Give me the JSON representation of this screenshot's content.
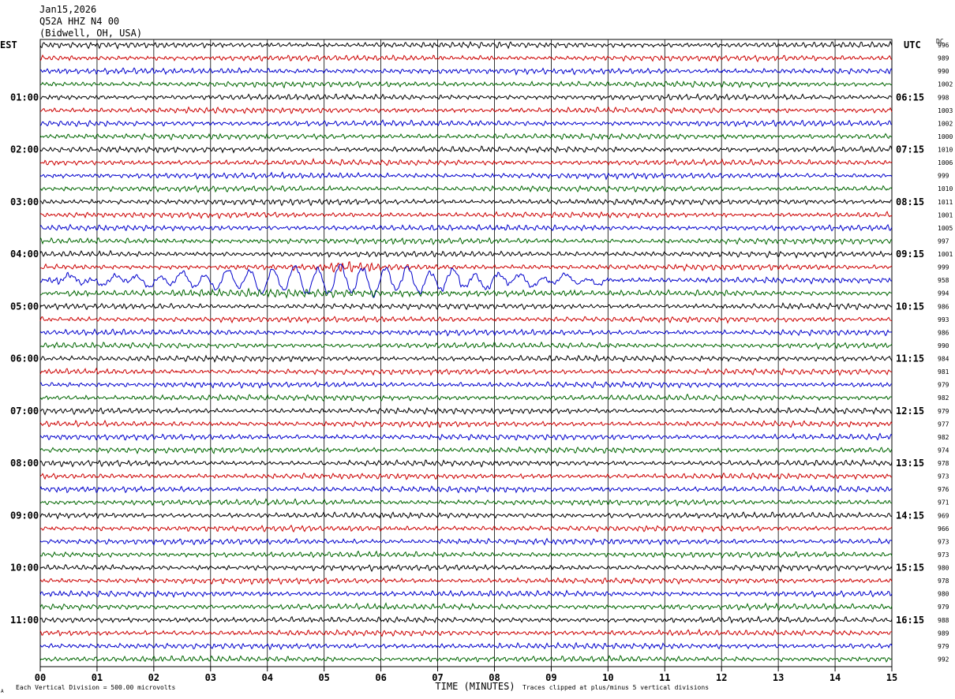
{
  "header": {
    "date": "Jan15,2026",
    "station": "Q52A HHZ N4 00",
    "location": "(Bidwell, OH, USA)"
  },
  "left_tz": "EST",
  "right_tz": "UTC",
  "dc_label": "DC",
  "footer": {
    "scale_note": "Each Vertical Division =  500.00 microvolts",
    "xlabel": "TIME (MINUTES)",
    "clip_note": "Traces clipped at plus/minus 5 vertical divisions",
    "corner_mark": "A"
  },
  "colors": {
    "trace_cycle": [
      "#000000",
      "#cc0000",
      "#0000cc",
      "#006600"
    ],
    "grid": "#000000"
  },
  "chart_data": {
    "type": "line",
    "title": "Jan15,2026 Q52A HHZ N4 00 (Bidwell, OH, USA)",
    "xlabel": "TIME (MINUTES)",
    "xlim": [
      0,
      15
    ],
    "x_ticks": [
      "00",
      "01",
      "02",
      "03",
      "04",
      "05",
      "06",
      "07",
      "08",
      "09",
      "10",
      "11",
      "12",
      "13",
      "14",
      "15"
    ],
    "row_count": 48,
    "left_hour_labels": [
      "01:00",
      "02:00",
      "03:00",
      "04:00",
      "05:00",
      "06:00",
      "07:00",
      "08:00",
      "09:00",
      "10:00",
      "11:00"
    ],
    "right_hour_labels": [
      "06:15",
      "07:15",
      "08:15",
      "09:15",
      "10:15",
      "11:15",
      "12:15",
      "13:15",
      "14:15",
      "15:15",
      "16:15"
    ],
    "dc_values": [
      996,
      989,
      990,
      1002,
      998,
      1003,
      1002,
      1000,
      1010,
      1006,
      999,
      1010,
      1011,
      1001,
      1005,
      997,
      1001,
      999,
      958,
      994,
      986,
      993,
      986,
      990,
      984,
      981,
      979,
      982,
      979,
      977,
      982,
      974,
      978,
      973,
      976,
      971,
      969,
      966,
      973,
      973,
      980,
      978,
      980,
      979,
      988,
      989,
      979,
      992
    ],
    "grid": true,
    "vertical_division_microvolts": 500.0,
    "clip_divisions": 5,
    "event": {
      "row": 18,
      "start_minute": 0.3,
      "end_minute": 10.0,
      "peak_minute": 5.3
    }
  }
}
